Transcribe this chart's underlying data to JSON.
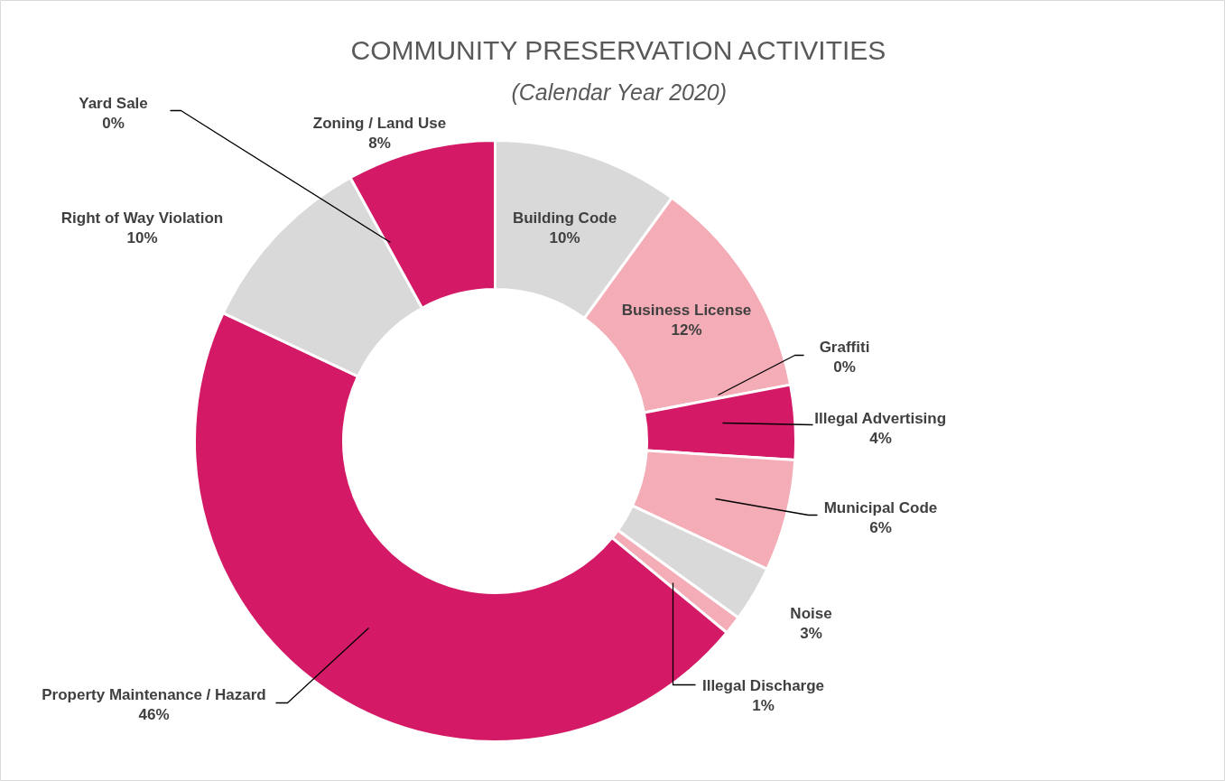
{
  "chart_data": {
    "type": "donut",
    "title": "COMMUNITY PRESERVATION ACTIVITIES",
    "subtitle": "(Calendar Year 2020)",
    "categories": [
      "Building Code",
      "Business License",
      "Graffiti",
      "Illegal Advertising",
      "Municipal Code",
      "Noise",
      "Illegal Discharge",
      "Property Maintenance / Hazard",
      "Right of Way Violation",
      "Yard Sale",
      "Zoning / Land Use"
    ],
    "values": [
      10,
      12,
      0,
      4,
      6,
      3,
      1,
      46,
      10,
      0,
      8
    ],
    "colors": [
      "#d9d9d9",
      "#f4acb7",
      "#d9d9d9",
      "#d41a66",
      "#f4acb7",
      "#d9d9d9",
      "#f4acb7",
      "#d41a66",
      "#d9d9d9",
      "#f4acb7",
      "#d41a66"
    ],
    "value_labels": [
      "10%",
      "12%",
      "0%",
      "4%",
      "6%",
      "3%",
      "1%",
      "46%",
      "10%",
      "0%",
      "8%"
    ]
  }
}
